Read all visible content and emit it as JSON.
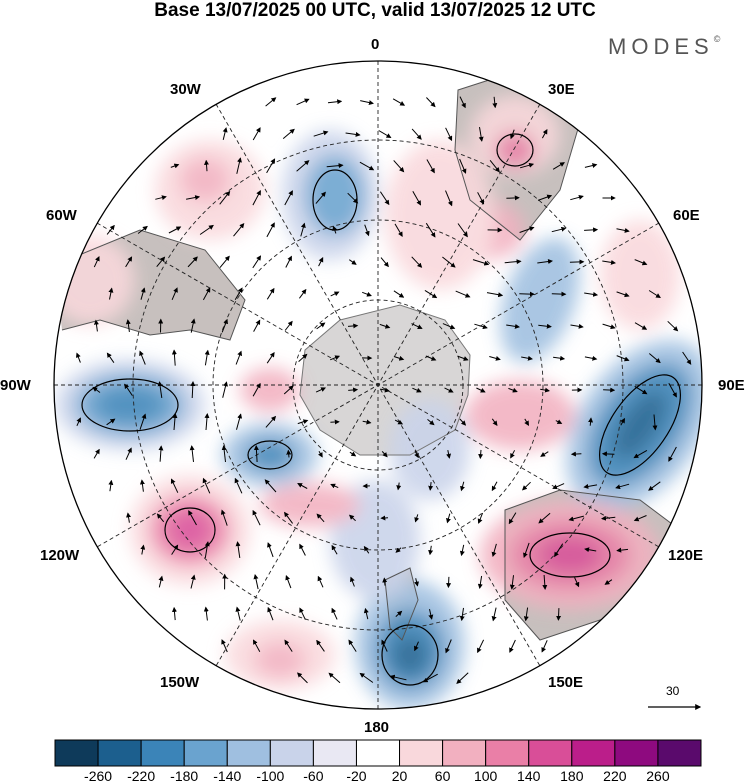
{
  "title": "Base 13/07/2025 00 UTC, valid 13/07/2025 12 UTC",
  "brand": {
    "name": "MODES",
    "mark": "©"
  },
  "longitude_labels": {
    "lon_0": "0",
    "lon_30e": "30E",
    "lon_60e": "60E",
    "lon_90e": "90E",
    "lon_120e": "120E",
    "lon_150e": "150E",
    "lon_180": "180",
    "lon_150w": "150W",
    "lon_120w": "120W",
    "lon_90w": "90W",
    "lon_60w": "60W",
    "lon_30w": "30W"
  },
  "reference_vector": {
    "value": "30"
  },
  "legend": {
    "ticks": [
      "-260",
      "-220",
      "-180",
      "-140",
      "-100",
      "-60",
      "-20",
      "20",
      "60",
      "100",
      "140",
      "180",
      "220",
      "260"
    ],
    "colors": [
      "#0e3a5a",
      "#1c5f8e",
      "#3b84b8",
      "#6aa3cf",
      "#9fbfe0",
      "#c9d3ea",
      "#e9e8f3",
      "#ffffff",
      "#f9d8dc",
      "#f2b0c0",
      "#ea7fa7",
      "#d94e98",
      "#bb1e8a",
      "#8e0a7f",
      "#5a0a6c"
    ]
  },
  "palette": {
    "land": "#bdb7b5",
    "antarctica": "#d8d6d6"
  }
}
